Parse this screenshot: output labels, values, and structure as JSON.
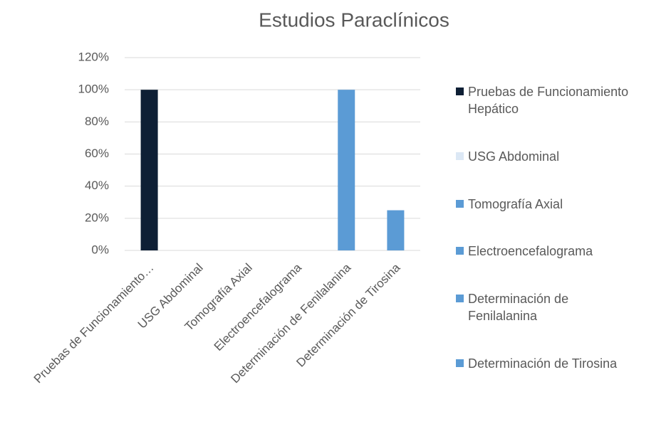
{
  "chart_data": {
    "type": "bar",
    "title": "Estudios Paraclínicos",
    "categories": [
      "Pruebas de Funcionamiento Hepático",
      "USG Abdominal",
      "Tomografía Axial",
      "Electroencefalograma",
      "Determinación de Fenilalanina",
      "Determinación de Tirosina"
    ],
    "x_tick_labels": [
      "Pruebas de Funcionamiento…",
      "USG Abdominal",
      "Tomografía Axial",
      "Electroencefalograma",
      "Determinación de Fenilalanina",
      "Determinación de Tirosina"
    ],
    "values": [
      100,
      0,
      0,
      0,
      100,
      25
    ],
    "colors": [
      "#0e1f35",
      "#dce8f5",
      "#5b9bd5",
      "#5b9bd5",
      "#5b9bd5",
      "#5b9bd5"
    ],
    "ylim": [
      0,
      120
    ],
    "yticks": [
      {
        "value": 0,
        "label": "0%"
      },
      {
        "value": 20,
        "label": "20%"
      },
      {
        "value": 40,
        "label": "40%"
      },
      {
        "value": 60,
        "label": "60%"
      },
      {
        "value": 80,
        "label": "80%"
      },
      {
        "value": 100,
        "label": "100%"
      },
      {
        "value": 120,
        "label": "120%"
      }
    ],
    "grid": true,
    "legend": "right"
  }
}
